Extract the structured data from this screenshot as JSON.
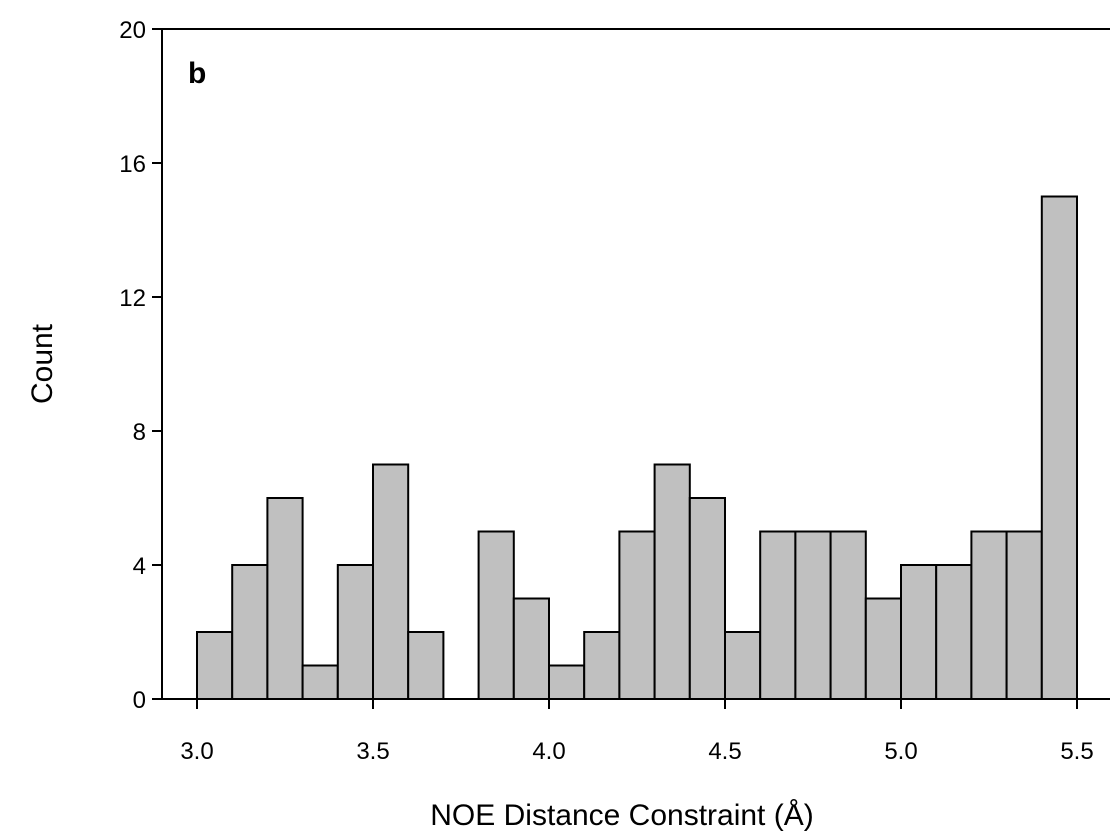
{
  "chart_data": {
    "type": "bar",
    "panel_label": "b",
    "xlabel": "NOE Distance Constraint (Å)",
    "ylabel": "Count",
    "xlim": [
      2.85,
      5.5
    ],
    "ylim": [
      0,
      20
    ],
    "x_ticks": [
      "3.0",
      "3.5",
      "4.0",
      "4.5",
      "5.0",
      "5.5"
    ],
    "y_ticks": [
      "0",
      "4",
      "8",
      "12",
      "16",
      "20"
    ],
    "bin_width": 0.1,
    "bin_centers": [
      3.05,
      3.15,
      3.25,
      3.35,
      3.45,
      3.55,
      3.65,
      3.75,
      3.85,
      3.95,
      4.05,
      4.15,
      4.25,
      4.35,
      4.45,
      4.55,
      4.65,
      4.75,
      4.85,
      4.95,
      5.05,
      5.15,
      5.25,
      5.35,
      5.45
    ],
    "values": [
      2,
      4,
      6,
      1,
      4,
      7,
      2,
      0,
      5,
      3,
      1,
      2,
      5,
      7,
      6,
      2,
      5,
      5,
      5,
      3,
      4,
      4,
      5,
      5,
      15
    ],
    "bar_color": "#c0c0c0",
    "edge_color": "#000000",
    "grid": false
  }
}
